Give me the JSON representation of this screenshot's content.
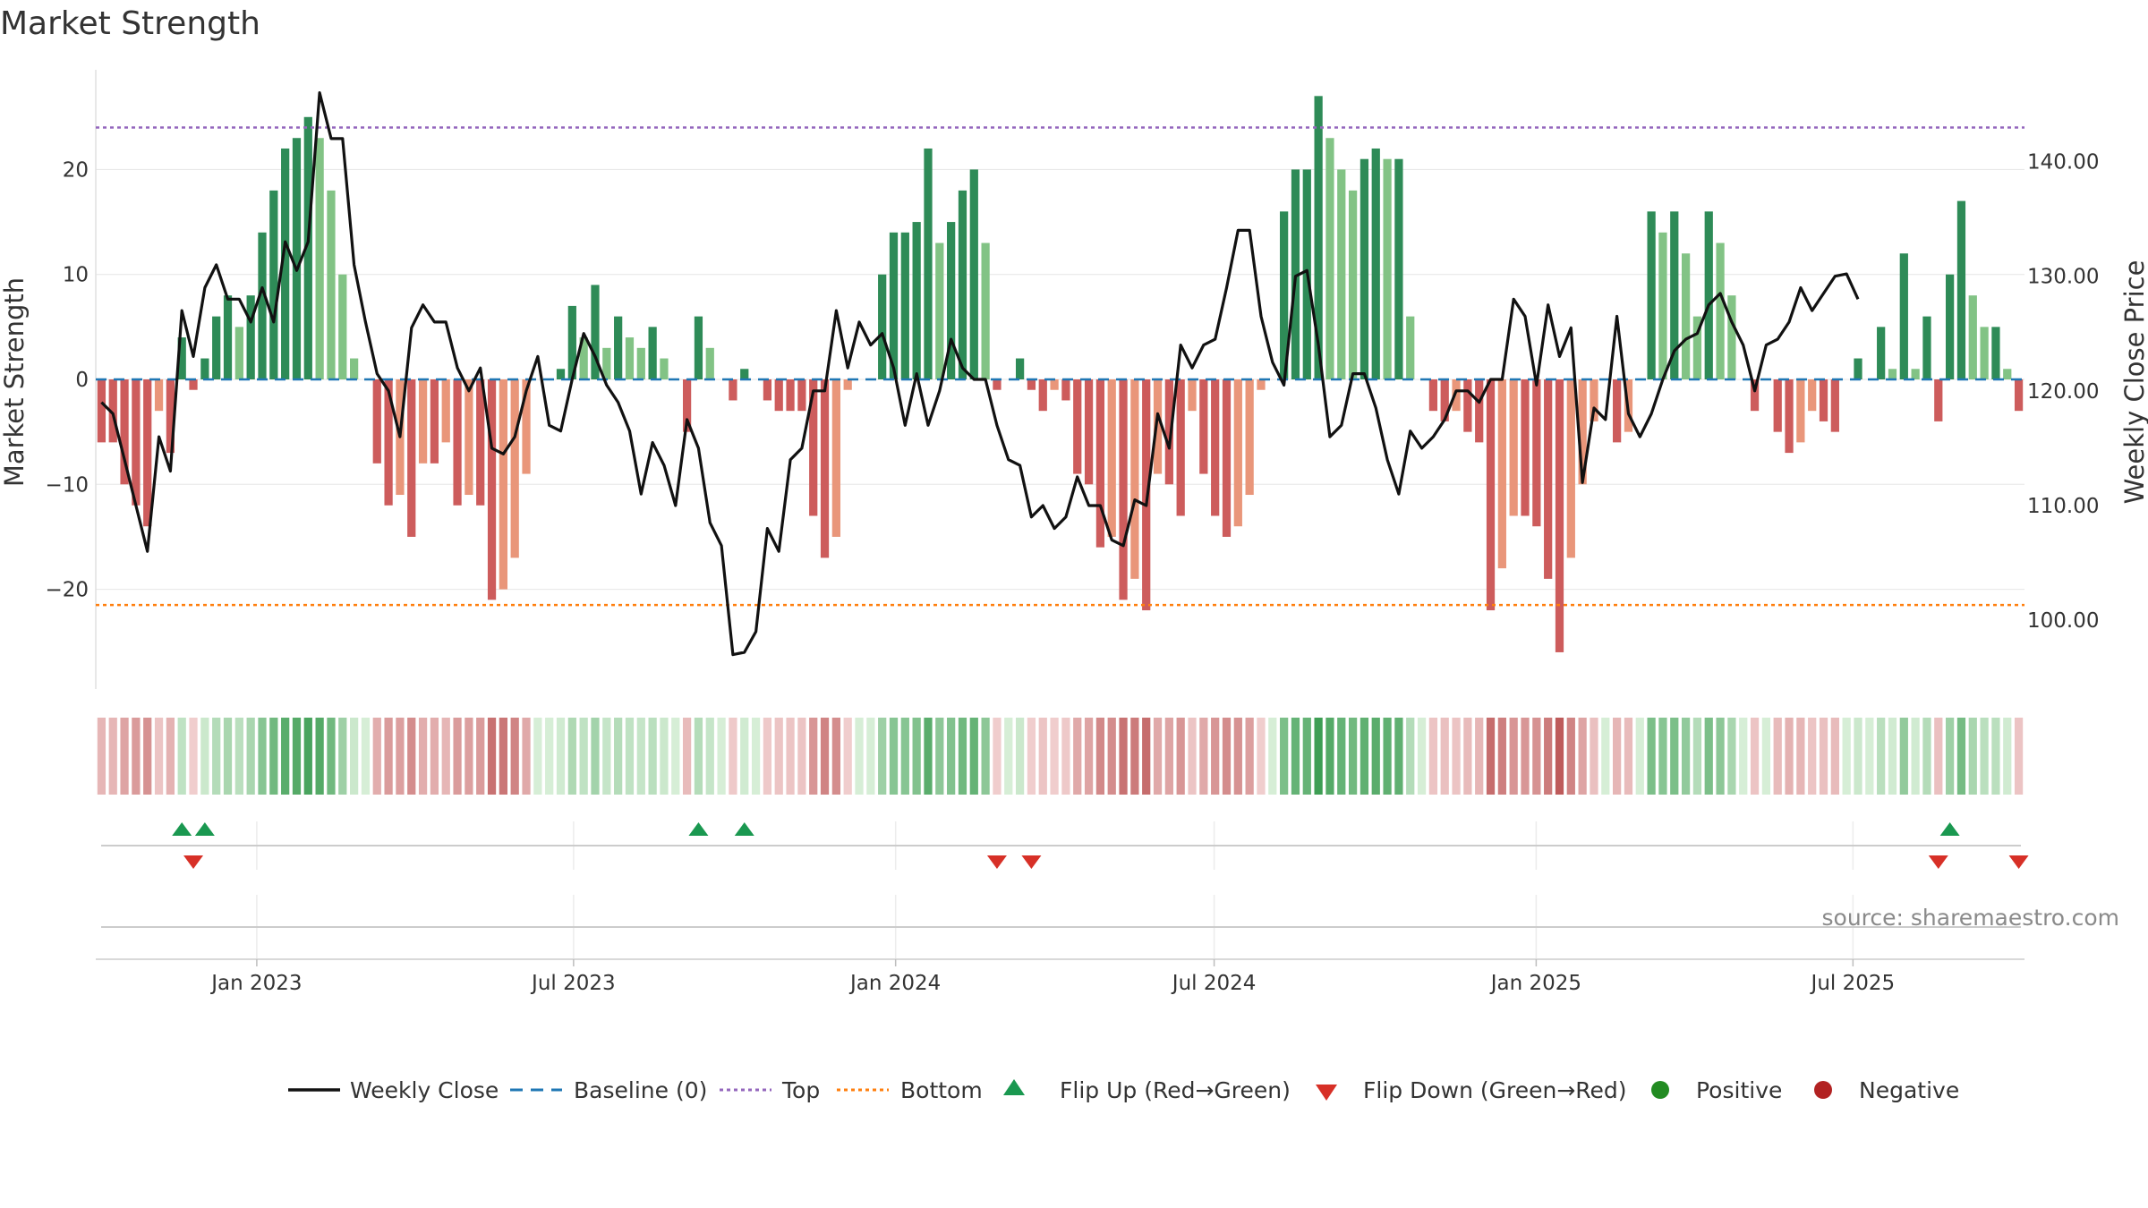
{
  "chart_data": {
    "type": "bar",
    "title": "Market Strength",
    "ylabel": "Market Strength",
    "y2label": "Weekly Close Price",
    "ylim": [
      -29.5,
      29.5
    ],
    "y2lim": [
      94.0,
      148.0
    ],
    "yticks": [
      20,
      10,
      0,
      -10,
      -20
    ],
    "yticklabels": [
      "20",
      "10",
      "0",
      "−10",
      "−20"
    ],
    "y2ticks": [
      140,
      130,
      120,
      110,
      100
    ],
    "y2ticklabels": [
      "140.00",
      "130.00",
      "120.00",
      "110.00",
      "100.00"
    ],
    "top_level": 24.0,
    "bottom_level": -21.5,
    "start_date": "2022-10-01",
    "end_date": "2025-10-07",
    "xticks": [
      {
        "date": "2023-01-01",
        "label": "Jan 2023"
      },
      {
        "date": "2023-07-01",
        "label": "Jul 2023"
      },
      {
        "date": "2024-01-01",
        "label": "Jan 2024"
      },
      {
        "date": "2024-07-01",
        "label": "Jul 2024"
      },
      {
        "date": "2025-01-01",
        "label": "Jan 2025"
      },
      {
        "date": "2025-07-01",
        "label": "Jul 2025"
      }
    ],
    "strength": [
      -6,
      -6,
      -10,
      -12,
      -14,
      -3,
      -7,
      4,
      -1,
      2,
      6,
      8,
      5,
      8,
      14,
      18,
      22,
      23,
      25,
      23,
      18,
      10,
      2,
      0,
      -8,
      -12,
      -11,
      -15,
      -8,
      -8,
      -6,
      -12,
      -11,
      -12,
      -21,
      -20,
      -17,
      -9,
      0,
      0,
      1,
      7,
      4,
      9,
      3,
      6,
      4,
      3,
      5,
      2,
      0,
      -5,
      6,
      3,
      0,
      -2,
      1,
      0,
      -2,
      -3,
      -3,
      -3,
      -13,
      -17,
      -15,
      -1,
      0,
      0,
      10,
      14,
      14,
      15,
      22,
      13,
      15,
      18,
      20,
      13,
      -1,
      0,
      2,
      -1,
      -3,
      -1,
      -2,
      -9,
      -10,
      -16,
      -15,
      -21,
      -19,
      -22,
      -9,
      -10,
      -13,
      -3,
      -9,
      -13,
      -15,
      -14,
      -11,
      -1,
      0,
      16,
      20,
      20,
      27,
      23,
      20,
      18,
      21,
      22,
      21,
      21,
      6,
      0,
      -3,
      -4,
      -3,
      -5,
      -6,
      -22,
      -18,
      -13,
      -13,
      -14,
      -19,
      -26,
      -17,
      -10,
      -4,
      0,
      -6,
      -5,
      0,
      16,
      14,
      16,
      12,
      6,
      16,
      13,
      8,
      0,
      -3,
      0,
      -5,
      -7,
      -6,
      -3,
      -4,
      -5,
      0,
      2,
      0,
      5,
      1,
      12,
      1,
      6,
      -4,
      10,
      17,
      8,
      5,
      5,
      1,
      -3
    ],
    "close": [
      119.0,
      118.0,
      114.0,
      110.0,
      106.0,
      116.0,
      113.0,
      127.0,
      123.0,
      129.0,
      131.0,
      128.0,
      128.0,
      126.0,
      129.0,
      126.0,
      133.0,
      130.5,
      133.0,
      146.0,
      142.0,
      142.0,
      131.0,
      126.0,
      121.5,
      120.0,
      116.0,
      125.5,
      127.5,
      126.0,
      126.0,
      122.0,
      120.0,
      122.0,
      115.0,
      114.5,
      116.0,
      120.0,
      123.0,
      117.0,
      116.5,
      121.0,
      125.0,
      123.0,
      120.5,
      119.0,
      116.5,
      111.0,
      115.5,
      113.5,
      110.0,
      117.5,
      115.0,
      108.5,
      106.5,
      97.0,
      97.2,
      99.0,
      108.0,
      106.0,
      114.0,
      115.0,
      120.0,
      120.0,
      127.0,
      122.0,
      126.0,
      124.0,
      125.0,
      122.0,
      117.0,
      121.5,
      117.0,
      120.0,
      124.5,
      122.0,
      121.0,
      121.0,
      117.0,
      114.0,
      113.5,
      109.0,
      110.0,
      108.0,
      109.0,
      112.5,
      110.0,
      110.0,
      107.0,
      106.5,
      110.5,
      110.0,
      118.0,
      115.0,
      124.0,
      122.0,
      124.0,
      124.5,
      129.0,
      134.0,
      134.0,
      126.5,
      122.5,
      120.5,
      130.0,
      130.5,
      124.0,
      116.0,
      117.0,
      121.5,
      121.5,
      118.5,
      114.0,
      111.0,
      116.5,
      115.0,
      116.0,
      117.5,
      120.0,
      120.0,
      119.0,
      121.0,
      121.0,
      128.0,
      126.5,
      120.5,
      127.5,
      123.0,
      125.5,
      112.0,
      118.5,
      117.5,
      126.5,
      118.0,
      116.0,
      118.0,
      121.0,
      123.5,
      124.5,
      125.0,
      127.5,
      128.5,
      126.0,
      124.0,
      120.0,
      124.0,
      124.5,
      126.0,
      129.0,
      127.0,
      128.5,
      130.0,
      130.2,
      128.0
    ],
    "legend": {
      "weekly_close": "Weekly Close",
      "baseline": "Baseline (0)",
      "top": "Top",
      "bottom": "Bottom",
      "flip_up": "Flip Up (Red→Green)",
      "flip_down": "Flip Down (Green→Red)",
      "positive": "Positive",
      "negative": "Negative"
    }
  },
  "source": "source: sharemaestro.com",
  "colors": {
    "pos_dark": "#2e8b57",
    "pos_light": "#82c385",
    "neg_dark": "#cd5c5c",
    "neg_light": "#e9967a",
    "line": "#111111",
    "baseline": "#1f77b4",
    "top": "#9467bd",
    "bottom": "#ff7f0e",
    "flip_up": "#1a9850",
    "flip_down": "#d73027",
    "positive": "#228b22",
    "negative": "#b22222",
    "grid": "#e6e6e6",
    "axis": "#cccccc"
  }
}
